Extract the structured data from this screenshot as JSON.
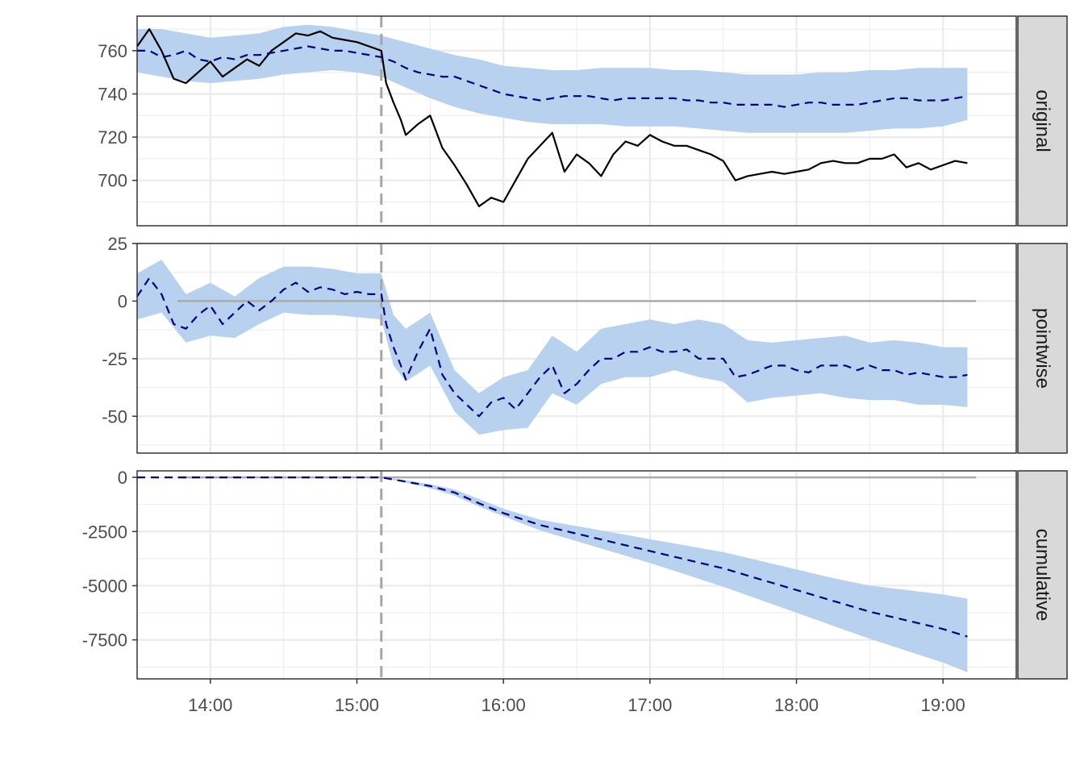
{
  "chart_data": {
    "type": "line",
    "x_axis": {
      "kind": "time",
      "range": [
        "13:30",
        "19:30"
      ],
      "tick_values": [
        "14:00",
        "15:00",
        "16:00",
        "17:00",
        "18:00",
        "19:00"
      ],
      "tick_labels": [
        "14:00",
        "15:00",
        "16:00",
        "17:00",
        "18:00",
        "19:00"
      ],
      "label": ""
    },
    "intervention_time": "15:10",
    "grid": true,
    "colors": {
      "band": "#b8d1ee",
      "prediction": "#000080",
      "observed": "#000000",
      "zero_line": "#aaaaaa",
      "intervention_line": "#a6a6a6",
      "panel_border": "#333333",
      "strip_fill": "#d9d9d9",
      "grid": "#ebebeb"
    },
    "panels": [
      {
        "strip": "original",
        "ylim": [
          679,
          776
        ],
        "y_ticks": [
          700,
          720,
          740,
          760
        ],
        "y_tick_labels": [
          "700",
          "720",
          "740",
          "760"
        ],
        "zero_line": false,
        "series": [
          {
            "role": "observed",
            "style": "solid",
            "x": [
              "13:30",
              "13:35",
              "13:40",
              "13:45",
              "13:50",
              "13:55",
              "14:00",
              "14:05",
              "14:10",
              "14:15",
              "14:20",
              "14:25",
              "14:30",
              "14:35",
              "14:40",
              "14:45",
              "14:50",
              "14:55",
              "15:00",
              "15:05",
              "15:10",
              "15:12",
              "15:15",
              "15:18",
              "15:20",
              "15:25",
              "15:30",
              "15:35",
              "15:40",
              "15:45",
              "15:50",
              "15:55",
              "16:00",
              "16:05",
              "16:10",
              "16:15",
              "16:20",
              "16:25",
              "16:30",
              "16:35",
              "16:40",
              "16:45",
              "16:50",
              "16:55",
              "17:00",
              "17:05",
              "17:10",
              "17:15",
              "17:20",
              "17:25",
              "17:30",
              "17:35",
              "17:40",
              "17:45",
              "17:50",
              "17:55",
              "18:00",
              "18:05",
              "18:10",
              "18:15",
              "18:20",
              "18:25",
              "18:30",
              "18:35",
              "18:40",
              "18:45",
              "18:50",
              "18:55",
              "19:00",
              "19:05",
              "19:10"
            ],
            "y": [
              762,
              770,
              760,
              747,
              745,
              750,
              755,
              748,
              752,
              756,
              753,
              760,
              764,
              768,
              767,
              769,
              766,
              765,
              764,
              762,
              760,
              745,
              736,
              728,
              721,
              726,
              730,
              715,
              707,
              698,
              688,
              692,
              690,
              700,
              710,
              716,
              722,
              704,
              712,
              708,
              702,
              712,
              718,
              716,
              721,
              718,
              716,
              716,
              714,
              712,
              709,
              700,
              702,
              703,
              704,
              703,
              704,
              705,
              708,
              709,
              708,
              708,
              710,
              710,
              712,
              706,
              708,
              705,
              707,
              709,
              708
            ]
          },
          {
            "role": "predicted",
            "style": "dashed",
            "x": [
              "13:30",
              "13:35",
              "13:40",
              "13:45",
              "13:50",
              "13:55",
              "14:00",
              "14:05",
              "14:10",
              "14:15",
              "14:20",
              "14:25",
              "14:30",
              "14:35",
              "14:40",
              "14:45",
              "14:50",
              "14:55",
              "15:00",
              "15:05",
              "15:10",
              "15:15",
              "15:20",
              "15:25",
              "15:30",
              "15:35",
              "15:40",
              "15:45",
              "15:50",
              "15:55",
              "16:00",
              "16:05",
              "16:10",
              "16:15",
              "16:20",
              "16:25",
              "16:30",
              "16:35",
              "16:40",
              "16:45",
              "16:50",
              "16:55",
              "17:00",
              "17:05",
              "17:10",
              "17:15",
              "17:20",
              "17:25",
              "17:30",
              "17:35",
              "17:40",
              "17:45",
              "17:50",
              "17:55",
              "18:00",
              "18:05",
              "18:10",
              "18:15",
              "18:20",
              "18:25",
              "18:30",
              "18:35",
              "18:40",
              "18:45",
              "18:50",
              "18:55",
              "19:00",
              "19:05",
              "19:10"
            ],
            "y": [
              760,
              760,
              757,
              758,
              760,
              756,
              755,
              757,
              756,
              758,
              758,
              759,
              760,
              761,
              762,
              761,
              760,
              760,
              759,
              758,
              757,
              755,
              752,
              750,
              749,
              748,
              748,
              746,
              744,
              742,
              740,
              739,
              738,
              737,
              738,
              739,
              739,
              739,
              738,
              737,
              738,
              738,
              738,
              738,
              738,
              737,
              737,
              736,
              736,
              735,
              735,
              735,
              735,
              734,
              735,
              736,
              736,
              735,
              735,
              735,
              736,
              737,
              738,
              738,
              737,
              737,
              737,
              738,
              739
            ]
          },
          {
            "role": "band",
            "x": [
              "13:30",
              "13:40",
              "13:50",
              "14:00",
              "14:10",
              "14:20",
              "14:30",
              "14:40",
              "14:50",
              "15:00",
              "15:10",
              "15:20",
              "15:30",
              "15:40",
              "15:50",
              "16:00",
              "16:10",
              "16:20",
              "16:30",
              "16:40",
              "16:50",
              "17:00",
              "17:10",
              "17:20",
              "17:30",
              "17:40",
              "17:50",
              "18:00",
              "18:10",
              "18:20",
              "18:30",
              "18:40",
              "18:50",
              "19:00",
              "19:10"
            ],
            "lower": [
              750,
              748,
              746,
              745,
              746,
              747,
              749,
              750,
              751,
              750,
              748,
              743,
              738,
              734,
              731,
              729,
              727,
              726,
              726,
              726,
              725,
              725,
              725,
              724,
              723,
              722,
              722,
              722,
              722,
              722,
              723,
              724,
              724,
              725,
              728
            ],
            "upper": [
              770,
              770,
              768,
              766,
              767,
              768,
              771,
              772,
              771,
              769,
              767,
              764,
              761,
              758,
              756,
              753,
              752,
              751,
              751,
              752,
              752,
              752,
              751,
              751,
              750,
              749,
              749,
              749,
              750,
              750,
              751,
              751,
              752,
              752,
              752
            ]
          }
        ]
      },
      {
        "strip": "pointwise",
        "ylim": [
          -66,
          25
        ],
        "y_ticks": [
          -50,
          -25,
          0,
          25
        ],
        "y_tick_labels": [
          "-50",
          "-25",
          "0",
          "25"
        ],
        "zero_line": true,
        "series": [
          {
            "role": "predicted",
            "style": "dashed",
            "x": [
              "13:30",
              "13:35",
              "13:40",
              "13:45",
              "13:50",
              "13:55",
              "14:00",
              "14:05",
              "14:10",
              "14:15",
              "14:20",
              "14:25",
              "14:30",
              "14:35",
              "14:40",
              "14:45",
              "14:50",
              "14:55",
              "15:00",
              "15:05",
              "15:10",
              "15:12",
              "15:15",
              "15:18",
              "15:20",
              "15:25",
              "15:30",
              "15:35",
              "15:40",
              "15:45",
              "15:50",
              "15:55",
              "16:00",
              "16:05",
              "16:10",
              "16:15",
              "16:20",
              "16:25",
              "16:30",
              "16:35",
              "16:40",
              "16:45",
              "16:50",
              "16:55",
              "17:00",
              "17:05",
              "17:10",
              "17:15",
              "17:20",
              "17:25",
              "17:30",
              "17:35",
              "17:40",
              "17:45",
              "17:50",
              "17:55",
              "18:00",
              "18:05",
              "18:10",
              "18:15",
              "18:20",
              "18:25",
              "18:30",
              "18:35",
              "18:40",
              "18:45",
              "18:50",
              "18:55",
              "19:00",
              "19:05",
              "19:10"
            ],
            "y": [
              2,
              10,
              3,
              -10,
              -12,
              -6,
              -2,
              -10,
              -5,
              0,
              -4,
              0,
              5,
              8,
              4,
              6,
              5,
              3,
              4,
              3,
              3,
              -10,
              -20,
              -28,
              -34,
              -22,
              -12,
              -32,
              -40,
              -45,
              -50,
              -44,
              -42,
              -47,
              -40,
              -33,
              -28,
              -40,
              -36,
              -30,
              -25,
              -25,
              -22,
              -22,
              -20,
              -22,
              -22,
              -21,
              -25,
              -25,
              -25,
              -33,
              -32,
              -30,
              -28,
              -28,
              -30,
              -31,
              -28,
              -28,
              -28,
              -30,
              -28,
              -30,
              -30,
              -32,
              -31,
              -32,
              -33,
              -33,
              -32
            ]
          },
          {
            "role": "band",
            "x": [
              "13:30",
              "13:40",
              "13:50",
              "14:00",
              "14:10",
              "14:20",
              "14:30",
              "14:40",
              "14:50",
              "15:00",
              "15:10",
              "15:15",
              "15:20",
              "15:30",
              "15:40",
              "15:50",
              "16:00",
              "16:10",
              "16:20",
              "16:30",
              "16:40",
              "16:50",
              "17:00",
              "17:10",
              "17:20",
              "17:30",
              "17:40",
              "17:50",
              "18:00",
              "18:10",
              "18:20",
              "18:30",
              "18:40",
              "18:50",
              "19:00",
              "19:10"
            ],
            "lower": [
              -8,
              -5,
              -18,
              -15,
              -16,
              -10,
              -5,
              -6,
              -6,
              -7,
              -8,
              -28,
              -35,
              -28,
              -48,
              -58,
              -56,
              -55,
              -40,
              -45,
              -36,
              -33,
              -33,
              -30,
              -33,
              -35,
              -44,
              -42,
              -41,
              -40,
              -42,
              -43,
              -43,
              -45,
              -45,
              -46
            ],
            "upper": [
              12,
              18,
              3,
              8,
              2,
              10,
              15,
              15,
              14,
              12,
              12,
              -6,
              -12,
              -5,
              -30,
              -40,
              -33,
              -30,
              -15,
              -22,
              -12,
              -10,
              -8,
              -10,
              -8,
              -10,
              -17,
              -18,
              -17,
              -16,
              -15,
              -18,
              -17,
              -18,
              -20,
              -20
            ]
          }
        ]
      },
      {
        "strip": "cumulative",
        "ylim": [
          -9300,
          300
        ],
        "y_ticks": [
          -7500,
          -5000,
          -2500,
          0
        ],
        "y_tick_labels": [
          "-7500",
          "-5000",
          "-2500",
          "0"
        ],
        "zero_line": true,
        "series": [
          {
            "role": "predicted",
            "style": "dashed",
            "x": [
              "13:30",
              "14:00",
              "14:30",
              "15:00",
              "15:10",
              "15:20",
              "15:30",
              "15:40",
              "15:50",
              "16:00",
              "16:15",
              "16:30",
              "16:45",
              "17:00",
              "17:15",
              "17:30",
              "17:45",
              "18:00",
              "18:15",
              "18:30",
              "18:45",
              "19:00",
              "19:10"
            ],
            "y": [
              0,
              0,
              0,
              0,
              0,
              -200,
              -400,
              -700,
              -1200,
              -1650,
              -2200,
              -2600,
              -3000,
              -3400,
              -3800,
              -4200,
              -4700,
              -5200,
              -5700,
              -6200,
              -6600,
              -7000,
              -7350
            ]
          },
          {
            "role": "band",
            "x": [
              "13:30",
              "15:10",
              "15:20",
              "15:30",
              "15:40",
              "15:50",
              "16:00",
              "16:15",
              "16:30",
              "16:45",
              "17:00",
              "17:15",
              "17:30",
              "17:45",
              "18:00",
              "18:15",
              "18:30",
              "18:45",
              "19:00",
              "19:10"
            ],
            "lower": [
              0,
              0,
              -250,
              -500,
              -850,
              -1350,
              -1800,
              -2450,
              -2950,
              -3450,
              -3950,
              -4500,
              -5050,
              -5650,
              -6250,
              -6850,
              -7450,
              -8000,
              -8550,
              -9000
            ],
            "upper": [
              0,
              0,
              -130,
              -320,
              -560,
              -1000,
              -1450,
              -1950,
              -2250,
              -2550,
              -2850,
              -3150,
              -3450,
              -3850,
              -4250,
              -4650,
              -5000,
              -5200,
              -5400,
              -5600
            ]
          }
        ]
      }
    ]
  }
}
